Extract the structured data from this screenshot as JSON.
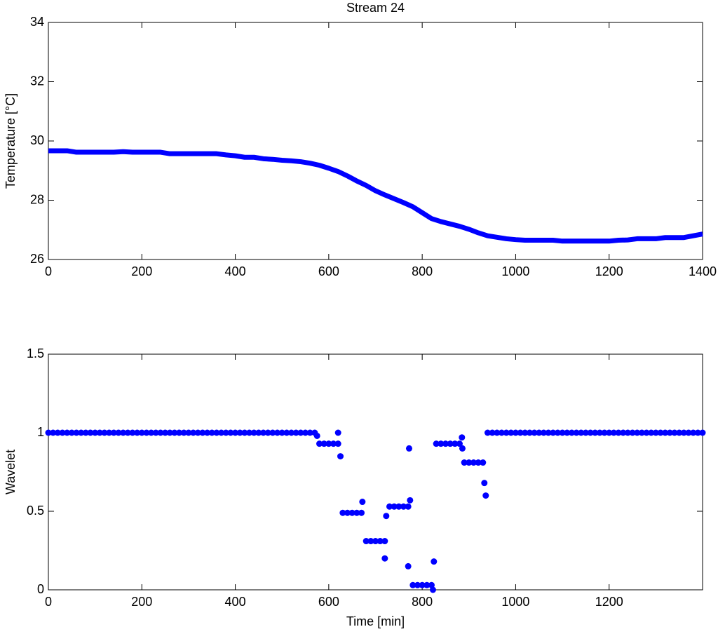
{
  "chart_data": [
    {
      "type": "line",
      "title": "Stream 24",
      "ylabel": "Temperature [°C]",
      "color": "#0000ff",
      "x": [
        0,
        20,
        40,
        60,
        80,
        100,
        120,
        140,
        160,
        180,
        200,
        220,
        240,
        260,
        280,
        300,
        320,
        340,
        360,
        380,
        400,
        420,
        440,
        460,
        480,
        500,
        520,
        540,
        560,
        580,
        600,
        620,
        640,
        660,
        680,
        700,
        720,
        740,
        760,
        780,
        800,
        820,
        840,
        860,
        880,
        900,
        920,
        940,
        960,
        980,
        1000,
        1020,
        1040,
        1060,
        1080,
        1100,
        1120,
        1140,
        1160,
        1180,
        1200,
        1220,
        1240,
        1260,
        1280,
        1300,
        1320,
        1340,
        1360,
        1380,
        1400
      ],
      "values": [
        29.67,
        29.67,
        29.67,
        29.62,
        29.62,
        29.62,
        29.62,
        29.62,
        29.64,
        29.62,
        29.62,
        29.62,
        29.62,
        29.57,
        29.57,
        29.57,
        29.57,
        29.57,
        29.57,
        29.53,
        29.5,
        29.45,
        29.45,
        29.4,
        29.38,
        29.35,
        29.33,
        29.3,
        29.25,
        29.18,
        29.08,
        28.97,
        28.82,
        28.65,
        28.5,
        28.32,
        28.18,
        28.05,
        27.92,
        27.78,
        27.58,
        27.38,
        27.28,
        27.2,
        27.12,
        27.02,
        26.9,
        26.8,
        26.75,
        26.7,
        26.67,
        26.65,
        26.65,
        26.65,
        26.65,
        26.62,
        26.62,
        26.62,
        26.62,
        26.62,
        26.62,
        26.65,
        26.66,
        26.7,
        26.7,
        26.7,
        26.74,
        26.74,
        26.74,
        26.8,
        26.86
      ],
      "xlim": [
        0,
        1400
      ],
      "ylim": [
        26,
        34
      ],
      "xticks": [
        0,
        200,
        400,
        600,
        800,
        1000,
        1200,
        1400
      ],
      "yticks": [
        26,
        28,
        30,
        32,
        34
      ]
    },
    {
      "type": "scatter",
      "ylabel": "Wavelet",
      "xlabel": "Time [min]",
      "color": "#0000ff",
      "x": [
        0,
        10,
        20,
        30,
        40,
        50,
        60,
        70,
        80,
        90,
        100,
        110,
        120,
        130,
        140,
        150,
        160,
        170,
        180,
        190,
        200,
        210,
        220,
        230,
        240,
        250,
        260,
        270,
        280,
        290,
        300,
        310,
        320,
        330,
        340,
        350,
        360,
        370,
        380,
        390,
        400,
        410,
        420,
        430,
        440,
        450,
        460,
        470,
        480,
        490,
        500,
        510,
        520,
        530,
        540,
        550,
        560,
        570,
        575,
        580,
        590,
        600,
        610,
        620,
        620,
        625,
        630,
        640,
        650,
        660,
        670,
        672,
        680,
        690,
        700,
        710,
        720,
        720,
        723,
        730,
        740,
        750,
        760,
        770,
        772,
        774,
        770,
        780,
        790,
        800,
        810,
        820,
        825,
        823,
        830,
        840,
        850,
        860,
        870,
        880,
        885,
        886,
        890,
        900,
        910,
        920,
        930,
        933,
        936,
        940,
        950,
        960,
        970,
        980,
        990,
        1000,
        1010,
        1020,
        1030,
        1040,
        1050,
        1060,
        1070,
        1080,
        1090,
        1100,
        1110,
        1120,
        1130,
        1140,
        1150,
        1160,
        1170,
        1180,
        1190,
        1200,
        1210,
        1220,
        1230,
        1240,
        1250,
        1260,
        1270,
        1280,
        1290,
        1300,
        1310,
        1320,
        1330,
        1340,
        1350,
        1360,
        1370,
        1380,
        1390,
        1400
      ],
      "values": [
        1,
        1,
        1,
        1,
        1,
        1,
        1,
        1,
        1,
        1,
        1,
        1,
        1,
        1,
        1,
        1,
        1,
        1,
        1,
        1,
        1,
        1,
        1,
        1,
        1,
        1,
        1,
        1,
        1,
        1,
        1,
        1,
        1,
        1,
        1,
        1,
        1,
        1,
        1,
        1,
        1,
        1,
        1,
        1,
        1,
        1,
        1,
        1,
        1,
        1,
        1,
        1,
        1,
        1,
        1,
        1,
        1,
        1,
        0.98,
        0.93,
        0.93,
        0.93,
        0.93,
        0.93,
        1,
        0.85,
        0.49,
        0.49,
        0.49,
        0.49,
        0.49,
        0.56,
        0.31,
        0.31,
        0.31,
        0.31,
        0.31,
        0.2,
        0.47,
        0.53,
        0.53,
        0.53,
        0.53,
        0.53,
        0.9,
        0.57,
        0.15,
        0.03,
        0.03,
        0.03,
        0.03,
        0.03,
        0.18,
        0,
        0.93,
        0.93,
        0.93,
        0.93,
        0.93,
        0.93,
        0.97,
        0.9,
        0.81,
        0.81,
        0.81,
        0.81,
        0.81,
        0.68,
        0.6,
        1,
        1,
        1,
        1,
        1,
        1,
        1,
        1,
        1,
        1,
        1,
        1,
        1,
        1,
        1,
        1,
        1,
        1,
        1,
        1,
        1,
        1,
        1,
        1,
        1,
        1,
        1,
        1,
        1,
        1,
        1,
        1,
        1,
        1,
        1,
        1,
        1,
        1,
        1,
        1,
        1,
        1,
        1,
        1,
        1,
        1,
        1
      ],
      "xlim": [
        0,
        1400
      ],
      "ylim": [
        0,
        1.5
      ],
      "xticks": [
        0,
        200,
        400,
        600,
        800,
        1000,
        1200
      ],
      "yticks": [
        0,
        0.5,
        1,
        1.5
      ]
    }
  ]
}
